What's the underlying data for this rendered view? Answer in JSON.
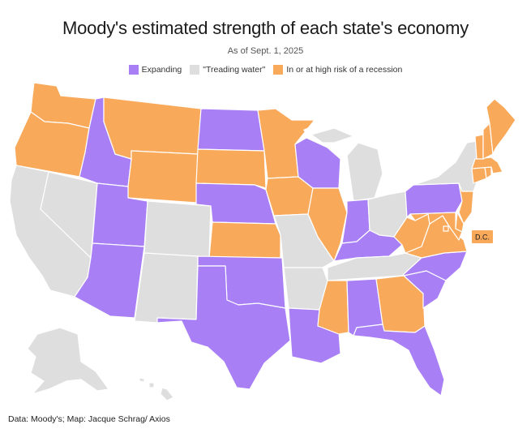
{
  "title": "Moody's estimated strength of each state's economy",
  "subtitle": "As of Sept. 1, 2025",
  "legend": [
    {
      "label": "Expanding",
      "color": "#a97ff5"
    },
    {
      "label": "\"Treading water\"",
      "color": "#dedede"
    },
    {
      "label": "In or at high risk of a recession",
      "color": "#f9a95a"
    }
  ],
  "colors": {
    "expanding": "#a97ff5",
    "treading": "#dedede",
    "recession": "#f9a95a"
  },
  "callout": "D.C.",
  "source": "Data: Moody's; Map: Jacque Schrag/ Axios",
  "states": {
    "WA": "recession",
    "OR": "recession",
    "CA": "treading",
    "NV": "treading",
    "ID": "expanding",
    "MT": "recession",
    "WY": "recession",
    "UT": "expanding",
    "AZ": "expanding",
    "CO": "treading",
    "NM": "treading",
    "ND": "expanding",
    "SD": "recession",
    "NE": "expanding",
    "KS": "recession",
    "OK": "expanding",
    "TX": "expanding",
    "MN": "recession",
    "IA": "recession",
    "MO": "treading",
    "AR": "treading",
    "LA": "expanding",
    "WI": "expanding",
    "IL": "recession",
    "MI": "treading",
    "IN": "expanding",
    "OH": "treading",
    "KY": "expanding",
    "TN": "treading",
    "MS": "recession",
    "AL": "expanding",
    "GA": "recession",
    "FL": "expanding",
    "SC": "expanding",
    "NC": "expanding",
    "VA": "recession",
    "WV": "recession",
    "PA": "expanding",
    "NY": "treading",
    "NJ": "recession",
    "DE": "recession",
    "MD": "recession",
    "DC": "recession",
    "CT": "recession",
    "RI": "recession",
    "MA": "recession",
    "VT": "recession",
    "NH": "recession",
    "ME": "recession",
    "AK": "treading",
    "HI": "treading"
  }
}
